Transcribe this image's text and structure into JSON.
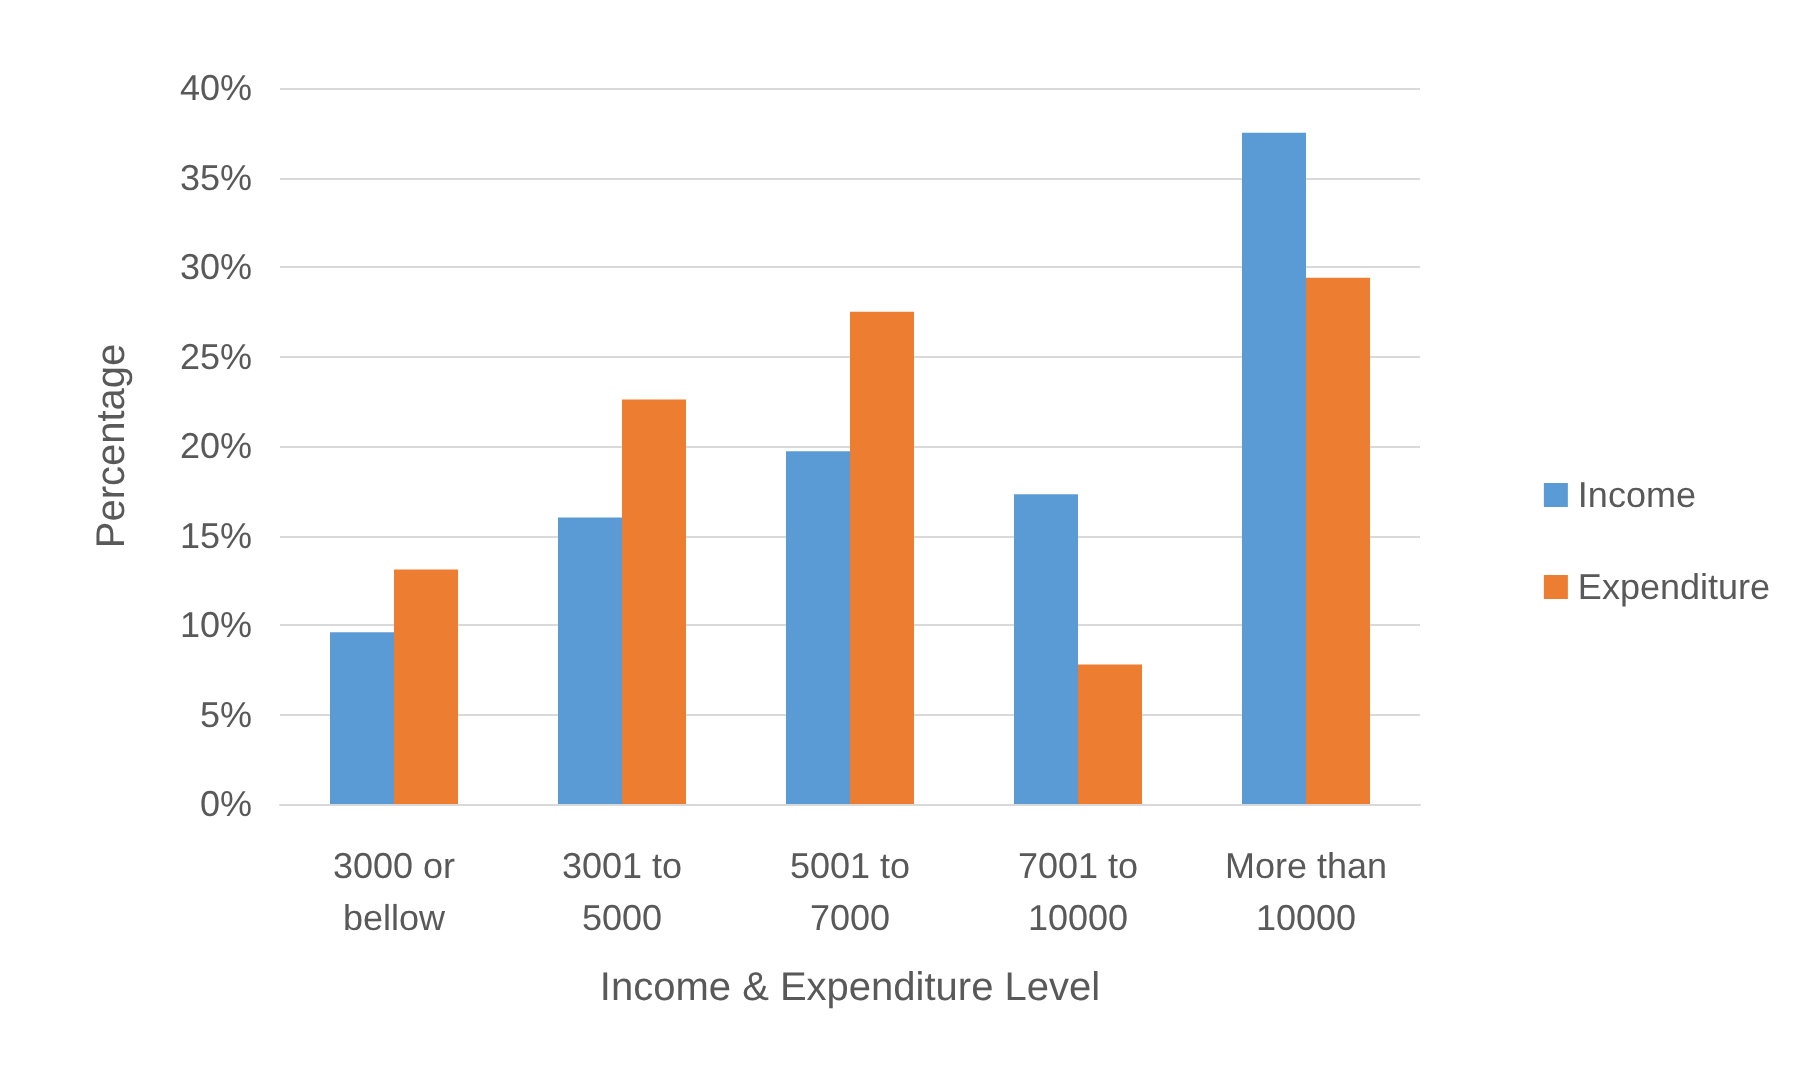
{
  "chart_data": {
    "type": "bar",
    "xlabel": "Income & Expenditure Level",
    "ylabel": "Percentage",
    "categories": [
      "3000 or\nbellow",
      "3001 to\n5000",
      "5001 to\n7000",
      "7001 to\n10000",
      "More than\n10000"
    ],
    "series": [
      {
        "name": "Income",
        "color": "#5b9bd5",
        "values": [
          9.6,
          16.0,
          19.7,
          17.3,
          37.5
        ]
      },
      {
        "name": "Expenditure",
        "color": "#ed7d31",
        "values": [
          13.1,
          22.6,
          27.5,
          7.8,
          29.4
        ]
      }
    ],
    "ylim": [
      0,
      40
    ],
    "yticks": [
      {
        "value": 0,
        "label": "0%"
      },
      {
        "value": 5,
        "label": "5%"
      },
      {
        "value": 10,
        "label": "10%"
      },
      {
        "value": 15,
        "label": "15%"
      },
      {
        "value": 20,
        "label": "20%"
      },
      {
        "value": 25,
        "label": "25%"
      },
      {
        "value": 30,
        "label": "30%"
      },
      {
        "value": 35,
        "label": "35%"
      },
      {
        "value": 40,
        "label": "40%"
      }
    ],
    "grid": "y",
    "legend": "right"
  }
}
